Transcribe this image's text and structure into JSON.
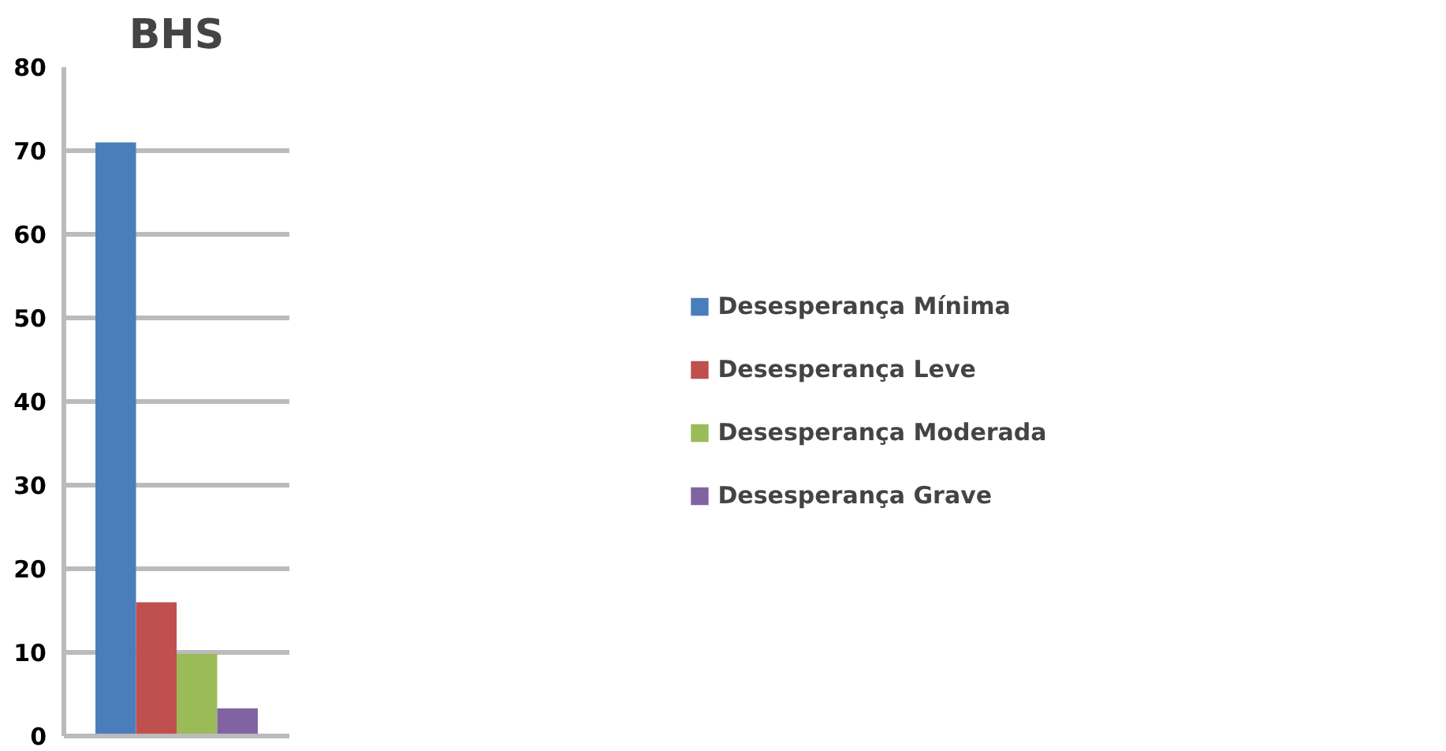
{
  "chart_data": {
    "type": "bar",
    "title": "BHS",
    "categories": [
      null
    ],
    "series": [
      {
        "name": "Desesperança Mínima",
        "color": "#4a7ebb",
        "values": [
          71
        ]
      },
      {
        "name": "Desesperança Leve",
        "color": "#c0504d",
        "values": [
          16
        ]
      },
      {
        "name": "Desesperança Moderada",
        "color": "#9bbb59",
        "values": [
          9.8
        ]
      },
      {
        "name": "Desesperança Grave",
        "color": "#8064a2",
        "values": [
          3.3
        ]
      }
    ],
    "ylim": [
      0,
      80
    ],
    "yticks": [
      0,
      10,
      20,
      30,
      40,
      50,
      60,
      70,
      80
    ],
    "grid": "y",
    "legend": "right",
    "tick_labels": "y"
  }
}
